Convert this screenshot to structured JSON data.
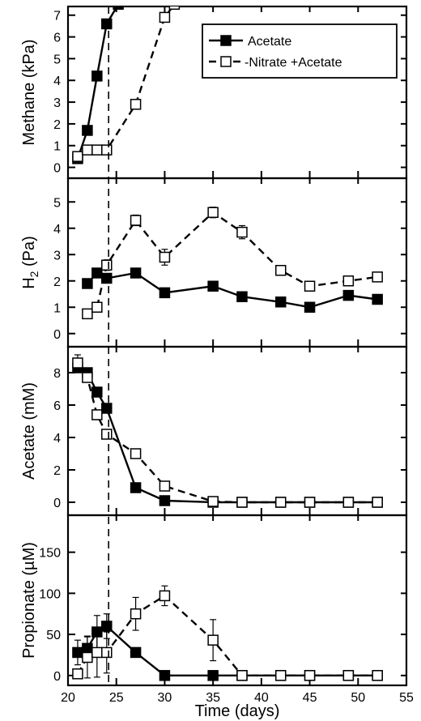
{
  "chart_data": [
    {
      "type": "line",
      "ylabel": "Methane (kPa)",
      "ylim": [
        -0.5,
        7.4
      ],
      "yticks": [
        0,
        1,
        2,
        3,
        4,
        5,
        6,
        7
      ],
      "xlim": [
        20,
        55
      ],
      "legend": {
        "position": "top-right"
      },
      "series": [
        {
          "name": "Acetate",
          "marker": "filled-square",
          "line": "solid",
          "x": [
            21,
            22,
            23,
            24,
            25.2
          ],
          "y": [
            0.4,
            1.7,
            4.2,
            6.6,
            7.5
          ]
        },
        {
          "name": "-Nitrate +Acetate",
          "marker": "open-square",
          "line": "dashed",
          "x": [
            21,
            22,
            23,
            24,
            27,
            30,
            31
          ],
          "y": [
            0.5,
            0.8,
            0.8,
            0.8,
            2.9,
            6.9,
            7.5
          ]
        }
      ]
    },
    {
      "type": "line",
      "ylabel": "H2 (Pa)",
      "ylim": [
        -0.5,
        5.9
      ],
      "yticks": [
        0,
        1,
        2,
        3,
        4,
        5
      ],
      "xlim": [
        20,
        55
      ],
      "series": [
        {
          "name": "Acetate",
          "marker": "filled-square",
          "line": "solid",
          "x": [
            22,
            23,
            24,
            27,
            30,
            35,
            38,
            42,
            45,
            49,
            52
          ],
          "y": [
            1.9,
            2.3,
            2.1,
            2.3,
            1.55,
            1.8,
            1.4,
            1.2,
            1.0,
            1.45,
            1.3
          ]
        },
        {
          "name": "-Nitrate +Acetate",
          "marker": "open-square",
          "line": "dashed",
          "x": [
            22,
            23,
            24,
            27,
            30,
            35,
            38,
            42,
            45,
            49,
            52
          ],
          "y": [
            0.75,
            1.0,
            2.6,
            4.3,
            2.9,
            4.6,
            3.85,
            2.4,
            1.8,
            2.0,
            2.15
          ],
          "err": [
            0,
            0,
            0.2,
            0.2,
            0.3,
            0.2,
            0.25,
            0,
            0,
            0,
            0
          ]
        }
      ]
    },
    {
      "type": "line",
      "ylabel": "Acetate (mM)",
      "ylim": [
        -0.8,
        9.6
      ],
      "yticks": [
        0,
        2,
        4,
        6,
        8
      ],
      "xlim": [
        20,
        55
      ],
      "series": [
        {
          "name": "Acetate",
          "marker": "filled-square",
          "line": "solid",
          "x": [
            21,
            22,
            23,
            24,
            27,
            30,
            35,
            38,
            42,
            45,
            49,
            52
          ],
          "y": [
            8.3,
            8.0,
            6.8,
            5.8,
            0.9,
            0.1,
            0,
            0,
            0,
            0,
            0,
            0
          ]
        },
        {
          "name": "-Nitrate +Acetate",
          "marker": "open-square",
          "line": "dashed",
          "x": [
            21,
            22,
            23,
            24,
            27,
            30,
            35,
            38,
            42,
            45,
            49,
            52
          ],
          "y": [
            8.6,
            7.7,
            5.4,
            4.2,
            3.0,
            1.0,
            0.05,
            0,
            0,
            0,
            0,
            0
          ],
          "err": [
            0.5,
            0,
            0.3,
            0.2,
            0,
            0,
            0,
            0,
            0,
            0,
            0,
            0
          ]
        }
      ]
    },
    {
      "type": "line",
      "ylabel": "Propionate (µM)",
      "ylim": [
        -12,
        195
      ],
      "yticks": [
        0,
        50,
        100,
        150
      ],
      "xlim": [
        20,
        55
      ],
      "xticks": [
        20,
        25,
        30,
        35,
        40,
        45,
        50,
        55
      ],
      "xlabel": "Time (days)",
      "series": [
        {
          "name": "Acetate",
          "marker": "filled-square",
          "line": "solid",
          "x": [
            21,
            22,
            23,
            24,
            27,
            30,
            35,
            38,
            42,
            45,
            49,
            52
          ],
          "y": [
            28,
            33,
            53,
            60,
            28,
            0,
            0,
            0,
            0,
            0,
            0,
            0
          ],
          "err": [
            15,
            15,
            20,
            15,
            0,
            0,
            0,
            0,
            0,
            0,
            0,
            0
          ]
        },
        {
          "name": "-Nitrate +Acetate",
          "marker": "open-square",
          "line": "dashed",
          "x": [
            21,
            22,
            23,
            24,
            27,
            30,
            35,
            38,
            42,
            45,
            49,
            52
          ],
          "y": [
            2,
            22,
            28,
            28,
            75,
            97,
            43,
            0,
            0,
            0,
            0,
            0
          ],
          "err": [
            5,
            25,
            30,
            25,
            20,
            12,
            25,
            0,
            0,
            0,
            0,
            0
          ]
        }
      ]
    }
  ],
  "reference_line": {
    "x": 24.2,
    "style": "dashed"
  },
  "ylabel_subscripts": {
    "1": {
      "base": "H",
      "sub": "2",
      "rest": " (Pa)"
    }
  }
}
